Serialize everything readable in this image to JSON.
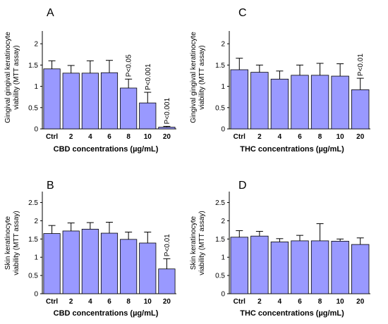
{
  "chart_data": [
    {
      "panel": "A",
      "type": "bar",
      "categories": [
        "Ctrl",
        "2",
        "4",
        "6",
        "8",
        "10",
        "20"
      ],
      "values": [
        1.41,
        1.31,
        1.31,
        1.32,
        0.96,
        0.61,
        0.04
      ],
      "errors": [
        0.19,
        0.18,
        0.29,
        0.29,
        0.21,
        0.25,
        0.02
      ],
      "annotations": [
        "",
        "",
        "",
        "",
        "P<0.05",
        "P<0.001",
        "P<0.001"
      ],
      "xlabel": "CBD concentrations (µg/mL)",
      "ylabel": [
        "Gingival gingival keratinocyte",
        "viability (MTT assay)"
      ],
      "ylim": [
        0,
        2.3
      ],
      "yticks": [
        "0",
        "0.5",
        "1",
        "1.5",
        "2"
      ],
      "bar_color": "#9999ff"
    },
    {
      "panel": "C",
      "type": "bar",
      "categories": [
        "Ctrl",
        "2",
        "4",
        "6",
        "8",
        "10",
        "20"
      ],
      "values": [
        1.39,
        1.33,
        1.17,
        1.26,
        1.26,
        1.24,
        0.92
      ],
      "errors": [
        0.27,
        0.17,
        0.19,
        0.24,
        0.28,
        0.29,
        0.27
      ],
      "annotations": [
        "",
        "",
        "",
        "",
        "",
        "",
        "P<0.01"
      ],
      "xlabel": "THC concentrations (µg/mL)",
      "ylabel": [
        "Gingival gingival keratinocyte",
        "viability (MTT assay)"
      ],
      "ylim": [
        0,
        2.3
      ],
      "yticks": [
        "0",
        "0.5",
        "1",
        "1.5",
        "2"
      ],
      "bar_color": "#9999ff"
    },
    {
      "panel": "B",
      "type": "bar",
      "categories": [
        "Ctrl",
        "2",
        "4",
        "6",
        "8",
        "10",
        "20"
      ],
      "values": [
        1.65,
        1.72,
        1.77,
        1.66,
        1.49,
        1.39,
        0.68
      ],
      "errors": [
        0.22,
        0.22,
        0.18,
        0.3,
        0.2,
        0.3,
        0.28
      ],
      "annotations": [
        "",
        "",
        "",
        "",
        "",
        "",
        "P<0.01"
      ],
      "xlabel": "CBD concentrations (µg/mL)",
      "ylabel": [
        "Skin keratinocyte",
        "viability (MTT assay)"
      ],
      "ylim": [
        0,
        2.8
      ],
      "yticks": [
        "0",
        "0.5",
        "1",
        "1.5",
        "2",
        "2.5"
      ],
      "bar_color": "#9999ff"
    },
    {
      "panel": "D",
      "type": "bar",
      "categories": [
        "Ctrl",
        "2",
        "4",
        "6",
        "8",
        "10",
        "20"
      ],
      "values": [
        1.55,
        1.58,
        1.42,
        1.45,
        1.45,
        1.44,
        1.35
      ],
      "errors": [
        0.18,
        0.13,
        0.09,
        0.15,
        0.47,
        0.06,
        0.18
      ],
      "annotations": [
        "",
        "",
        "",
        "",
        "",
        "",
        ""
      ],
      "xlabel": "THC concentrations (µg/mL)",
      "ylabel": [
        "Skin keratinocyte",
        "viability (MTT assay)"
      ],
      "ylim": [
        0,
        2.8
      ],
      "yticks": [
        "0",
        "0.5",
        "1",
        "1.5",
        "2",
        "2.5"
      ],
      "bar_color": "#9999ff"
    }
  ]
}
